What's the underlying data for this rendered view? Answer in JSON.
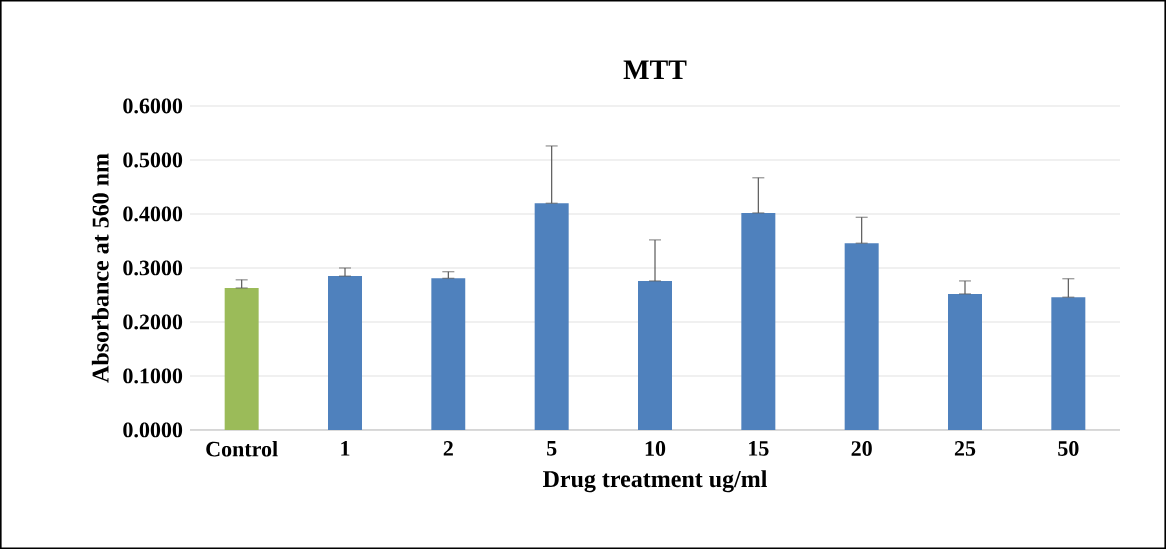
{
  "chart_data": {
    "type": "bar",
    "title": "MTT",
    "xlabel": "Drug treatment ug/ml",
    "ylabel": "Absorbance at 560 nm",
    "categories": [
      "Control",
      "1",
      "2",
      "5",
      "10",
      "15",
      "20",
      "25",
      "50"
    ],
    "values": [
      0.263,
      0.285,
      0.281,
      0.42,
      0.276,
      0.402,
      0.346,
      0.252,
      0.246
    ],
    "colors": [
      "#9bbb59",
      "#4f81bd",
      "#4f81bd",
      "#4f81bd",
      "#4f81bd",
      "#4f81bd",
      "#4f81bd",
      "#4f81bd",
      "#4f81bd"
    ],
    "errors": [
      [
        0.263,
        0.278
      ],
      [
        0.285,
        0.3
      ],
      [
        0.281,
        0.293
      ],
      [
        0.42,
        0.526
      ],
      [
        0.276,
        0.352
      ],
      [
        0.402,
        0.467
      ],
      [
        0.346,
        0.394
      ],
      [
        0.252,
        0.276
      ],
      [
        0.246,
        0.28
      ]
    ],
    "ylim": [
      0,
      0.6
    ],
    "yticks": [
      {
        "value": 0,
        "label": "0.0000"
      },
      {
        "value": 0.1,
        "label": "0.1000"
      },
      {
        "value": 0.2,
        "label": "0.2000"
      },
      {
        "value": 0.3,
        "label": "0.3000"
      },
      {
        "value": 0.4,
        "label": "0.4000"
      },
      {
        "value": 0.5,
        "label": "0.5000"
      },
      {
        "value": 0.6,
        "label": "0.6000"
      }
    ],
    "grid": "y"
  }
}
